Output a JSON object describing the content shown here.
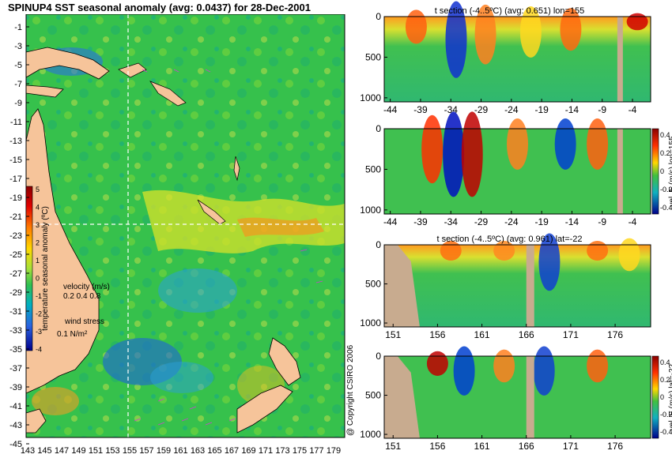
{
  "title": "SPINUP4 SST seasonal anomaly (avg: 0.0437) for 28-Dec-2001",
  "copyright": "@ Copyright CSIRO 2006",
  "colors": {
    "land": "#f6c49a",
    "land_section": "#c8ab8f",
    "ocean_base": "#33c24a",
    "cross_hair": "#ffffff"
  },
  "map": {
    "lat_labels": [
      "-1",
      "-3",
      "-5",
      "-7",
      "-9",
      "-11",
      "-13",
      "-15",
      "-17",
      "-19",
      "-21",
      "-23",
      "-25",
      "-27",
      "-29",
      "-31",
      "-33",
      "-35",
      "-37",
      "-39",
      "-41",
      "-43",
      "-45"
    ],
    "lon_labels": [
      "143",
      "145",
      "147",
      "149",
      "151",
      "153",
      "155",
      "157",
      "159",
      "161",
      "163",
      "165",
      "167",
      "169",
      "171",
      "173",
      "175",
      "177",
      "179"
    ],
    "colorbar": {
      "ticks": [
        "5",
        "4",
        "3",
        "2",
        "1",
        "0",
        "-1",
        "-2",
        "-3",
        "-4"
      ],
      "label": "temperature seasonal anomaly (ºC)",
      "colors": [
        "#8b0000",
        "#d40000",
        "#ff4500",
        "#ff8c00",
        "#ffd700",
        "#c8e000",
        "#40c040",
        "#00a0b0",
        "#1060d0",
        "#0000a0"
      ]
    },
    "velocity_legend": {
      "label": "velocity (m/s)",
      "scale": "0.2 0.4 0.8"
    },
    "wind_legend": {
      "label": "wind stress",
      "scale": "0.1 N/m²"
    }
  },
  "chart_data": [
    {
      "type": "heatmap",
      "title": "t section (-4..5ºC) (avg: 0.651) lon=155",
      "x_ticks": [
        "-44",
        "-39",
        "-34",
        "-29",
        "-24",
        "-19",
        "-14",
        "-9",
        "-4"
      ],
      "y_ticks": [
        "0",
        "500",
        "1000"
      ],
      "xlim": [
        -45,
        -1
      ],
      "ylim": [
        1050,
        0
      ]
    },
    {
      "type": "heatmap",
      "title": "",
      "ylabel": "vel. E (m/s) lon=155",
      "x_ticks": [
        "-44",
        "-39",
        "-34",
        "-29",
        "-24",
        "-19",
        "-14",
        "-9",
        "-4"
      ],
      "y_ticks": [
        "0",
        "500",
        "1000"
      ],
      "colorbar_ticks": [
        "0.4",
        "0.2",
        "0",
        "-0.2",
        "-0.4"
      ],
      "xlim": [
        -45,
        -1
      ],
      "ylim": [
        1050,
        0
      ]
    },
    {
      "type": "heatmap",
      "title": "t section (-4..5ºC) (avg: 0.961) lat=-22",
      "x_ticks": [
        "151",
        "156",
        "161",
        "166",
        "171",
        "176"
      ],
      "y_ticks": [
        "0",
        "500",
        "1000"
      ],
      "xlim": [
        150,
        180
      ],
      "ylim": [
        1050,
        0
      ]
    },
    {
      "type": "heatmap",
      "title": "",
      "ylabel": "vel. E (m/s) lat=-22",
      "x_ticks": [
        "151",
        "156",
        "161",
        "166",
        "171",
        "176"
      ],
      "y_ticks": [
        "0",
        "500",
        "1000"
      ],
      "colorbar_ticks": [
        "0.4",
        "0.2",
        "0",
        "-0.2",
        "-0.4"
      ],
      "xlim": [
        150,
        180
      ],
      "ylim": [
        1050,
        0
      ]
    }
  ]
}
